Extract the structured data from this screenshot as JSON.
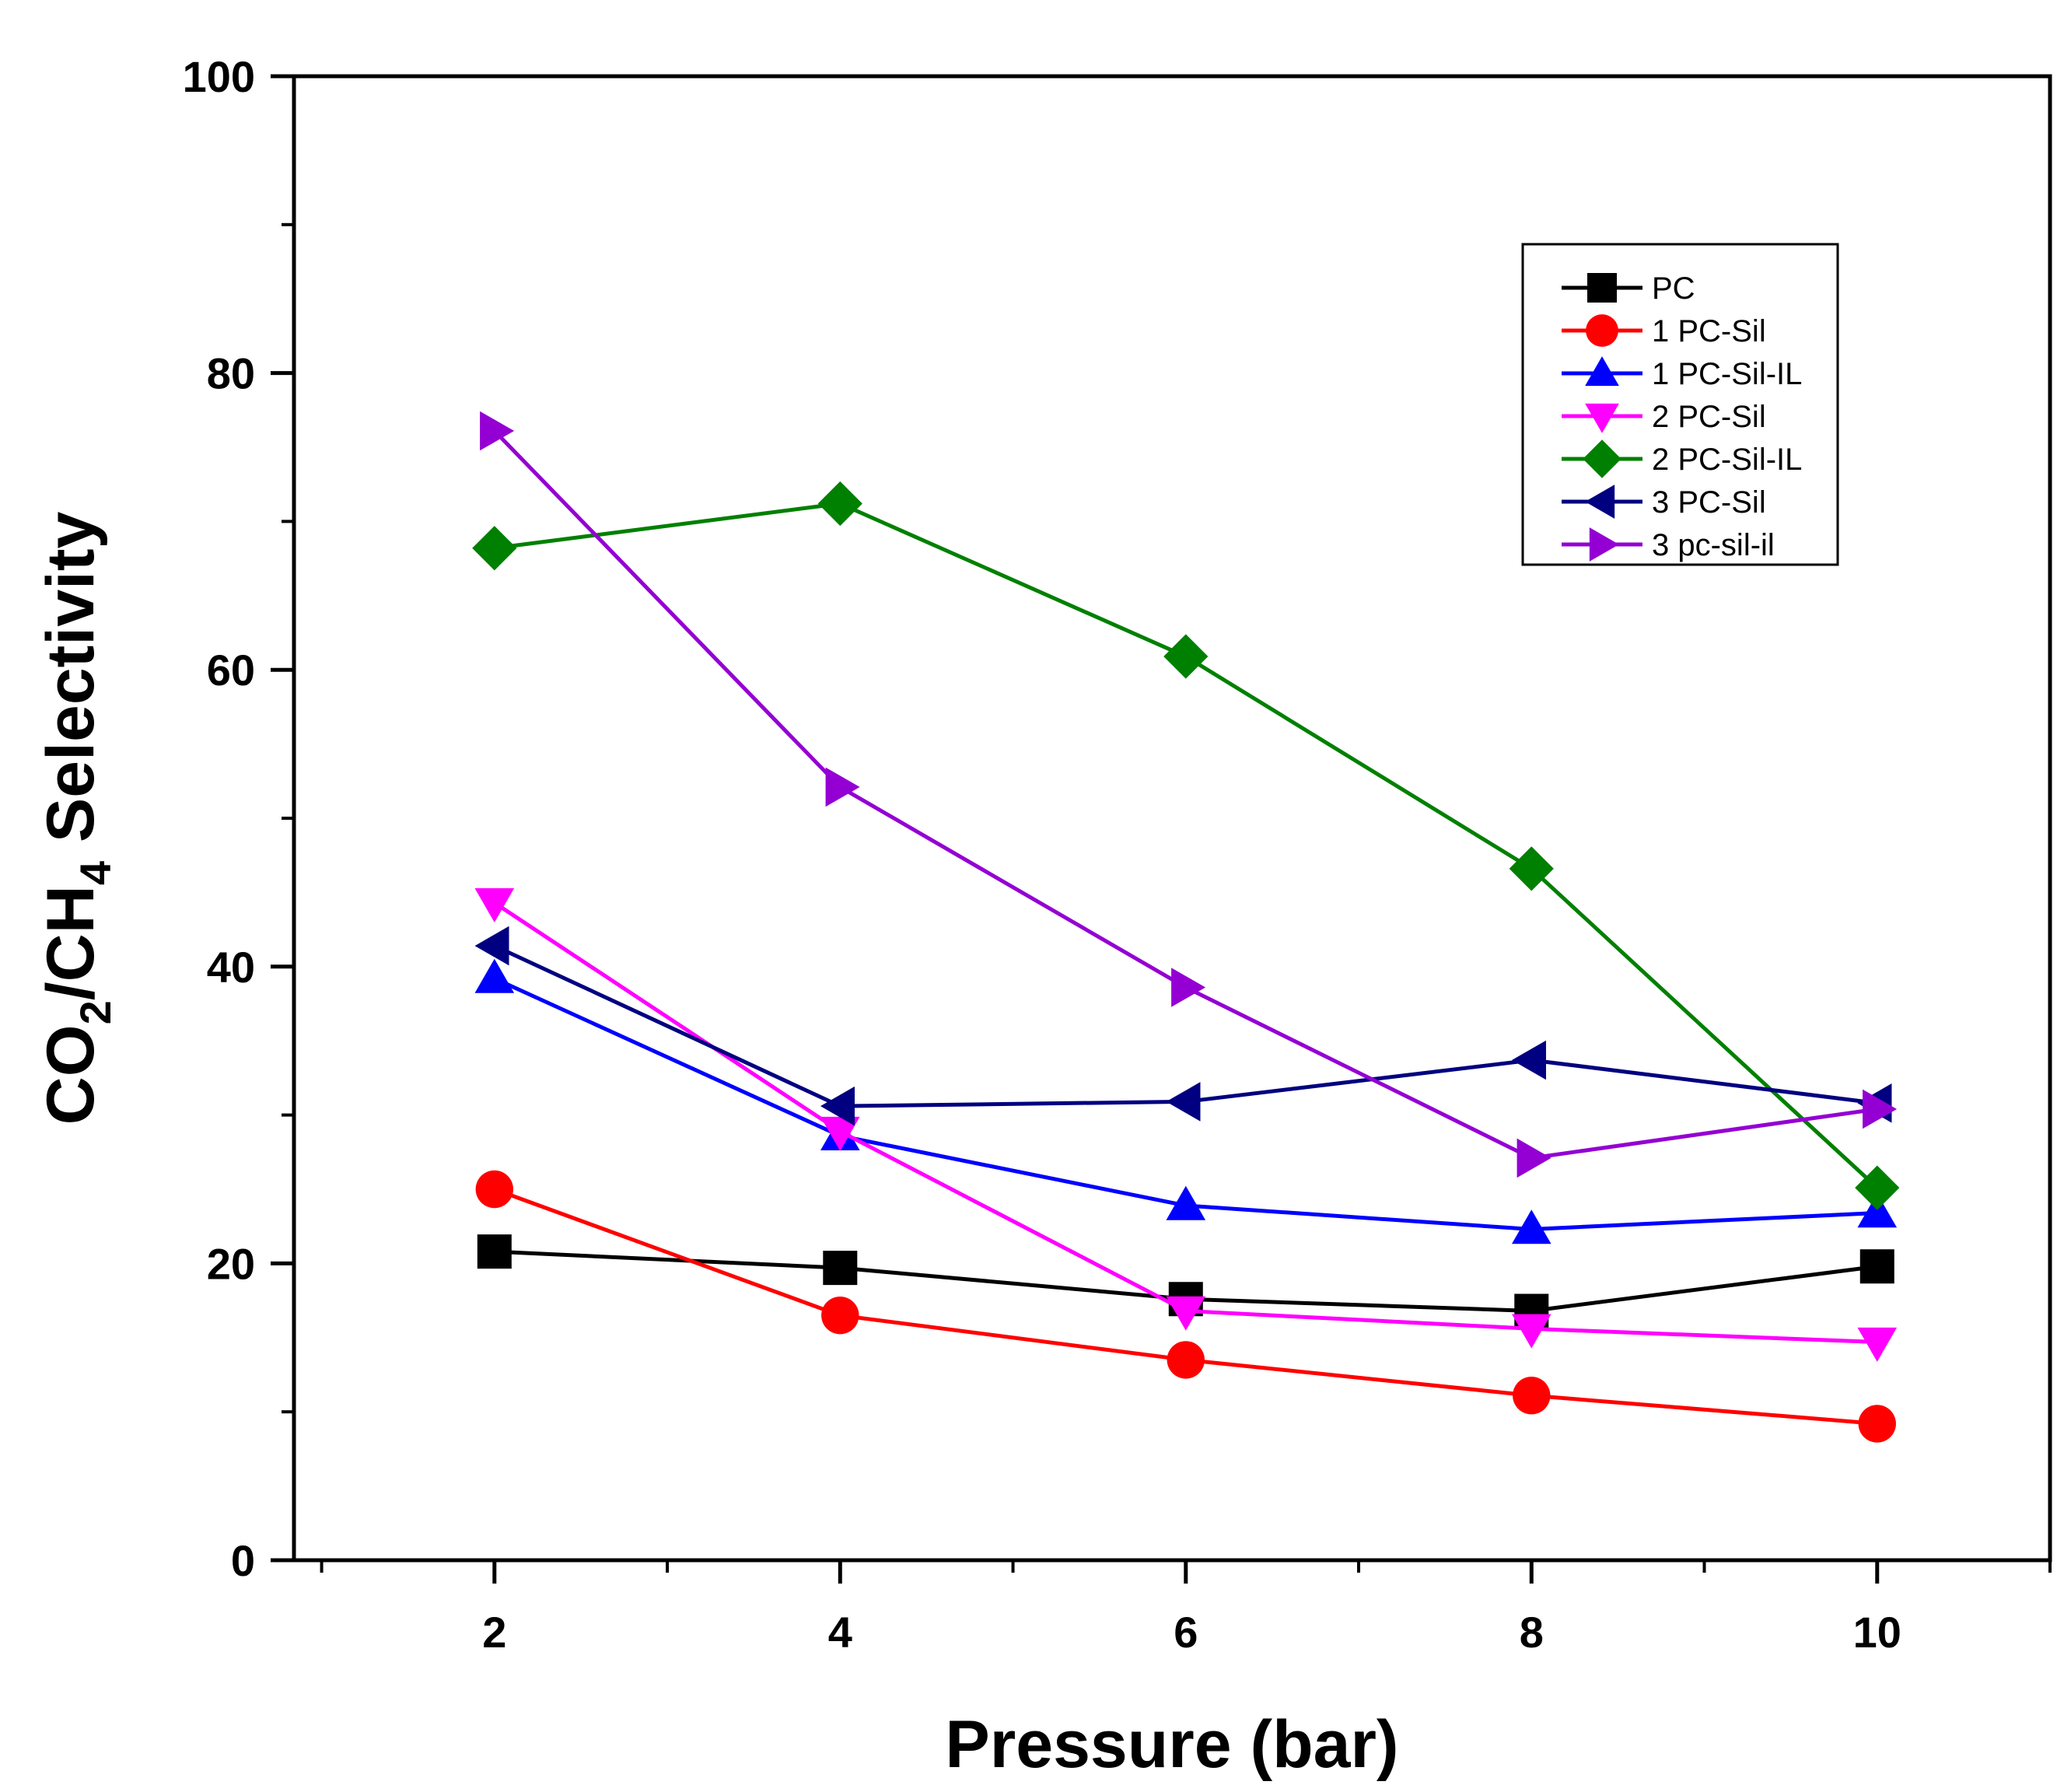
{
  "chart_data": {
    "type": "line",
    "title": "",
    "xlabel": "Pressure (bar)",
    "ylabel": {
      "base": "CO",
      "sub1": "2",
      "mid": "/CH",
      "sub2": "4",
      "tail": " Selectivity"
    },
    "xlim": [
      0.84,
      11.0
    ],
    "ylim": [
      0,
      100
    ],
    "x_ticks": [
      2,
      4,
      6,
      8,
      10
    ],
    "x_tick_labels": [
      "2",
      "4",
      "6",
      "8",
      "10"
    ],
    "y_ticks": [
      0,
      20,
      40,
      60,
      80,
      100
    ],
    "y_tick_labels": [
      "0",
      "20",
      "40",
      "60",
      "80",
      "100"
    ],
    "x": [
      2,
      4,
      6,
      8,
      10
    ],
    "legend_position": "top-right",
    "series": [
      {
        "name": "PC",
        "color": "#000000",
        "marker": "square",
        "values": [
          20.8,
          19.7,
          17.6,
          16.8,
          19.8
        ]
      },
      {
        "name": "1 PC-Sil",
        "color": "#ff0000",
        "marker": "circle",
        "values": [
          25.0,
          16.5,
          13.5,
          11.1,
          9.2
        ]
      },
      {
        "name": "1 PC-Sil-IL",
        "color": "#0000ff",
        "marker": "triangle-up",
        "values": [
          39.2,
          28.6,
          23.9,
          22.3,
          23.4
        ]
      },
      {
        "name": "2 PC-Sil",
        "color": "#ff00ff",
        "marker": "triangle-down",
        "values": [
          44.3,
          28.9,
          16.8,
          15.6,
          14.7
        ]
      },
      {
        "name": "2 PC-Sil-IL",
        "color": "#008000",
        "marker": "diamond",
        "values": [
          68.2,
          71.2,
          60.9,
          46.6,
          25.1
        ]
      },
      {
        "name": "3 PC-Sil",
        "color": "#000080",
        "marker": "triangle-left",
        "values": [
          41.4,
          30.6,
          30.9,
          33.7,
          30.8
        ]
      },
      {
        "name": "3 pc-sil-il",
        "color": "#9400d3",
        "marker": "triangle-right",
        "values": [
          76.1,
          52.1,
          38.6,
          27.1,
          30.4
        ]
      }
    ]
  }
}
